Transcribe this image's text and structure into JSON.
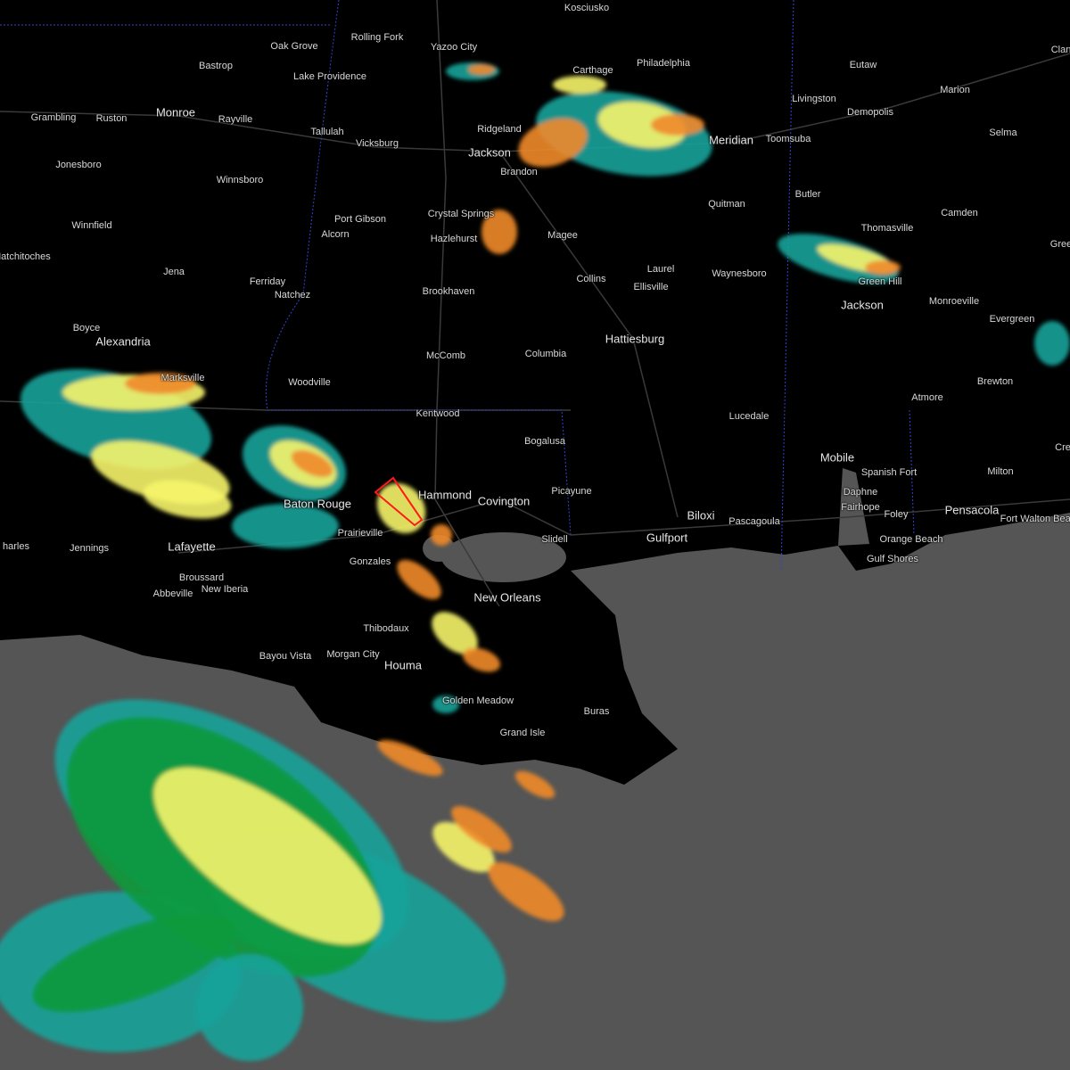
{
  "map": {
    "type": "weather radar",
    "colors": {
      "land": "#000000",
      "water": "#555555",
      "roads": "#3a3a3a",
      "state_border": "#3344cc",
      "warning_polygon": "#ff1a1a",
      "radar_light": "#19a39a",
      "radar_green": "#0e9a3c",
      "radar_yellow": "#f6f46a",
      "radar_orange": "#f0892a",
      "radar_red": "#e02f2a"
    },
    "cities": [
      "Kosciusko",
      "Oak Grove",
      "Rolling Fork",
      "Yazoo City",
      "Carthage",
      "Philadelphia",
      "Eutaw",
      "Clan",
      "Bastrop",
      "Lake Providence",
      "Livingston",
      "Marion",
      "Grambling",
      "Ruston",
      "Monroe",
      "Rayville",
      "Tallulah",
      "Vicksburg",
      "Ridgeland",
      "Demopolis",
      "Selma",
      "Jackson",
      "Brandon",
      "Meridian",
      "Toomsuba",
      "Jonesboro",
      "Winnsboro",
      "Butler",
      "Quitman",
      "Camden",
      "Crystal Springs",
      "Port Gibson",
      "Winnfield",
      "Alcorn",
      "Hazlehurst",
      "Magee",
      "Thomasville",
      "Natchitoches",
      "Laurel",
      "Gree",
      "Jena",
      "Ferriday",
      "Waynesboro",
      "Collins",
      "Green Hill",
      "Natchez",
      "Brookhaven",
      "Ellisville",
      "Monroeville",
      "Jackson",
      "Boyce",
      "Alexandria",
      "Hattiesburg",
      "Evergreen",
      "McComb",
      "Columbia",
      "Woodville",
      "Brewton",
      "Marksville",
      "Atmore",
      "Kentwood",
      "Lucedale",
      "Bogalusa",
      "Cre",
      "Mobile",
      "Spanish Fort",
      "Milton",
      "Hammond",
      "Covington",
      "Picayune",
      "Baton Rouge",
      "Daphne",
      "Biloxi",
      "Pascagoula",
      "Fairhope",
      "Foley",
      "Pensacola",
      "Fort Walton Beach",
      "Slidell",
      "Gulfport",
      "Prairieville",
      "Orange Beach",
      "Gulf Shores",
      "Gonzales",
      "harles",
      "Jennings",
      "Lafayette",
      "Broussard",
      "New Iberia",
      "Abbeville",
      "New Orleans",
      "Thibodaux",
      "Bayou Vista",
      "Morgan City",
      "Houma",
      "Golden Meadow",
      "Buras",
      "Grand Isle"
    ]
  }
}
